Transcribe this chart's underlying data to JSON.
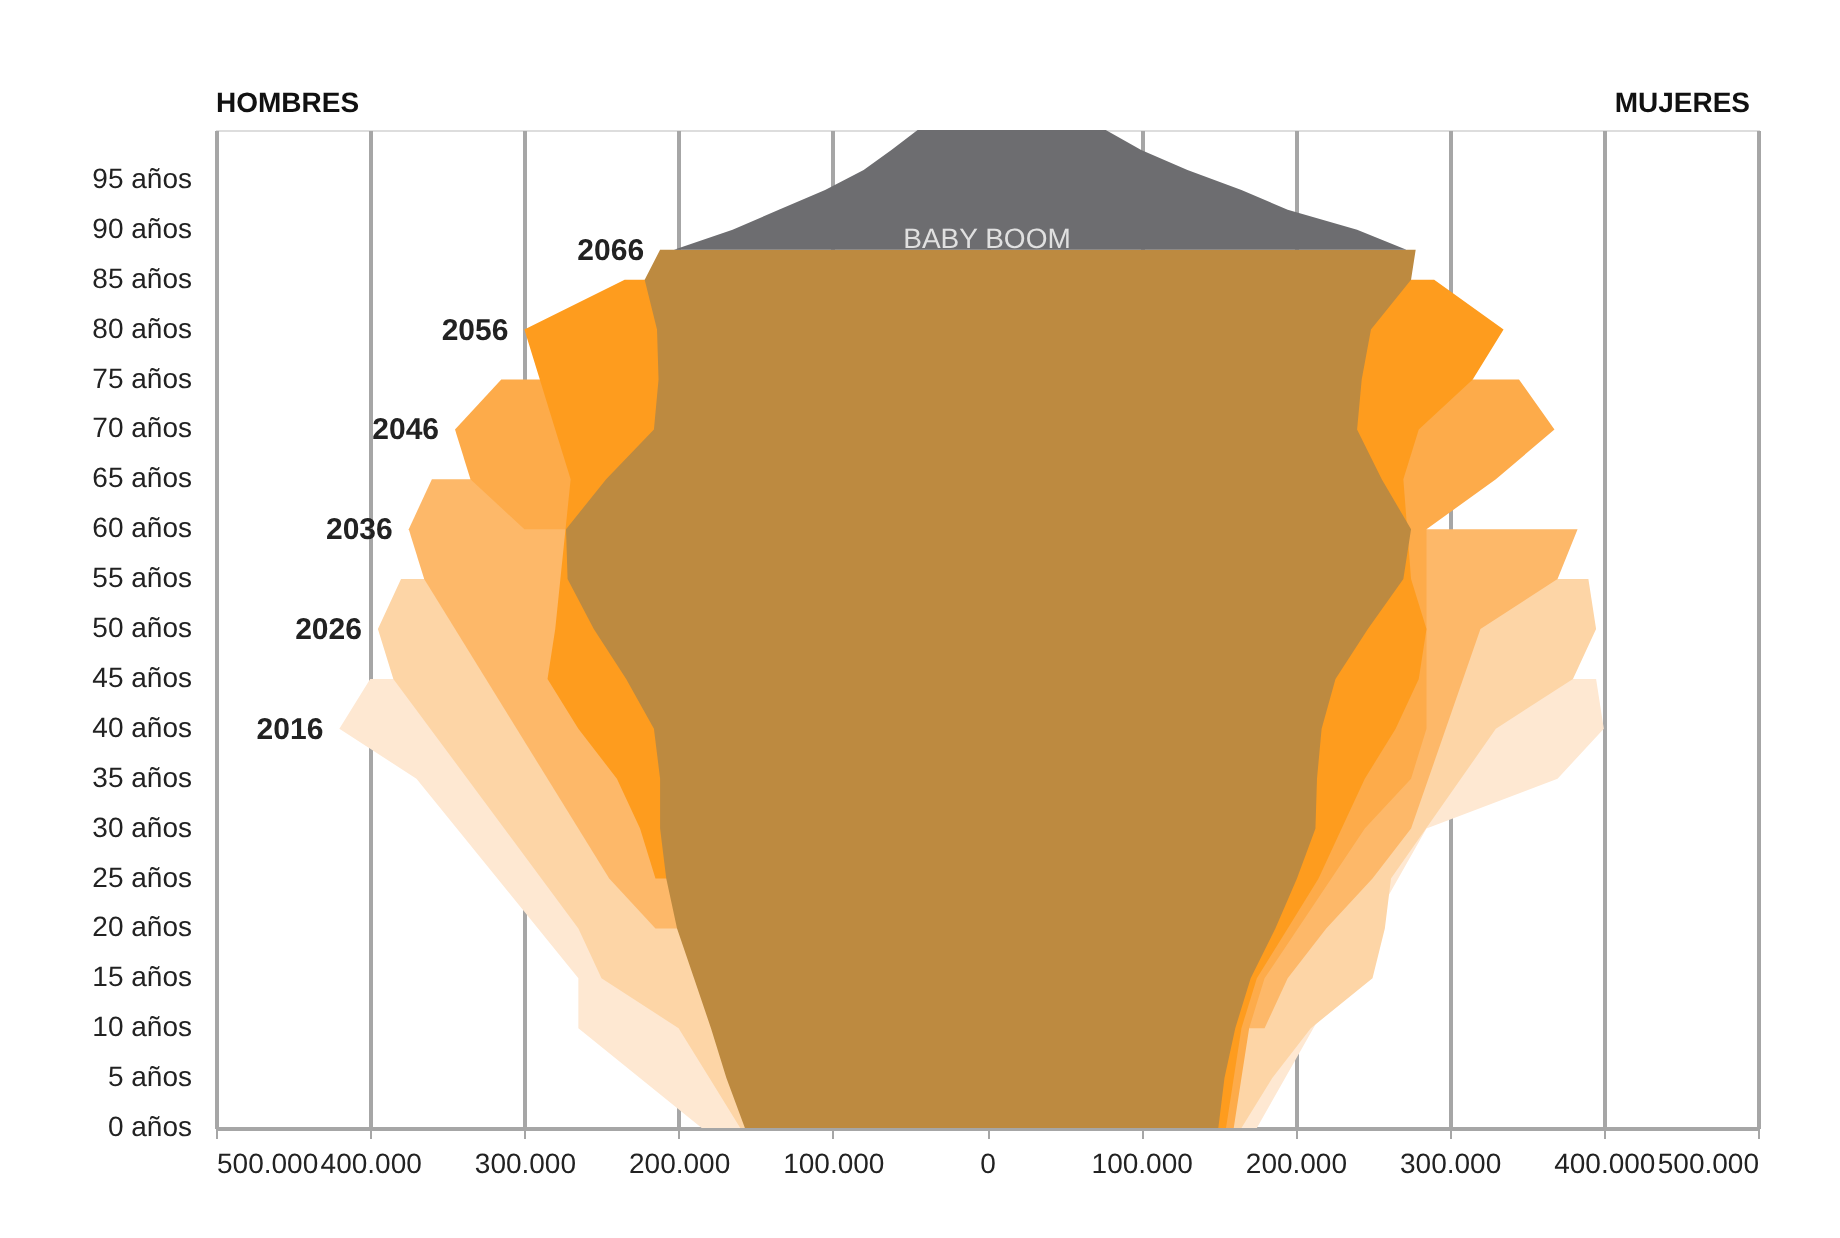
{
  "chart_data": {
    "type": "area",
    "orientation": "horizontal",
    "grid": "x",
    "xlim": [
      -500000,
      500000
    ],
    "xticks": [
      {
        "value": -500000,
        "label": "500.000"
      },
      {
        "value": -400000,
        "label": "400.000"
      },
      {
        "value": -300000,
        "label": "300.000"
      },
      {
        "value": -200000,
        "label": "200.000"
      },
      {
        "value": -100000,
        "label": "100.000"
      },
      0,
      {
        "value": 100000,
        "label": "100.000"
      },
      {
        "value": 200000,
        "label": "200.000"
      },
      {
        "value": 300000,
        "label": "300.000"
      },
      {
        "value": 400000,
        "label": "400.000"
      },
      {
        "value": 500000,
        "label": "500.000"
      }
    ],
    "ylim": [
      0,
      100
    ],
    "yticks": [
      {
        "value": 0,
        "label": "0 años"
      },
      {
        "value": 5,
        "label": "5 años"
      },
      {
        "value": 10,
        "label": "10 años"
      },
      {
        "value": 15,
        "label": "15 años"
      },
      {
        "value": 20,
        "label": "20 años"
      },
      {
        "value": 25,
        "label": "25 años"
      },
      {
        "value": 30,
        "label": "30 años"
      },
      {
        "value": 35,
        "label": "35 años"
      },
      {
        "value": 40,
        "label": "40 años"
      },
      {
        "value": 45,
        "label": "45 años"
      },
      {
        "value": 50,
        "label": "50 años"
      },
      {
        "value": 55,
        "label": "55 años"
      },
      {
        "value": 60,
        "label": "60 años"
      },
      {
        "value": 65,
        "label": "65 años"
      },
      {
        "value": 70,
        "label": "70 años"
      },
      {
        "value": 75,
        "label": "75 años"
      },
      {
        "value": 80,
        "label": "80 años"
      },
      {
        "value": 85,
        "label": "85 años"
      },
      {
        "value": 90,
        "label": "90 años"
      },
      {
        "value": 95,
        "label": "95 años"
      }
    ],
    "x": [
      0,
      5,
      10,
      15,
      20,
      25,
      30,
      35,
      40,
      45,
      50,
      55,
      60,
      65,
      70,
      75,
      80,
      85
    ],
    "series": [
      {
        "name": "2016",
        "color": "#fee8d2",
        "values": [
          -185000,
          null,
          -265000,
          -265000,
          null,
          null,
          null,
          -370000,
          -420000,
          -400000,
          null,
          null,
          null,
          null,
          null,
          null,
          null,
          null
        ]
      },
      {
        "color": "#fee8d2",
        "values": [
          175000,
          null,
          null,
          null,
          null,
          null,
          285000,
          370000,
          400000,
          395000,
          null,
          null,
          null,
          null,
          null,
          null,
          null,
          null
        ]
      },
      {
        "name": "2026",
        "color": "#fdd5a6",
        "values": [
          -160000,
          -180000,
          -200000,
          -250000,
          -265000,
          null,
          null,
          null,
          null,
          -385000,
          -395000,
          -380000,
          null,
          null,
          null,
          null,
          null,
          null
        ]
      },
      {
        "color": "#fdd5a6",
        "values": [
          165000,
          185000,
          210000,
          250000,
          258000,
          262000,
          null,
          null,
          330000,
          380000,
          395000,
          390000,
          null,
          null,
          null,
          null,
          null,
          null
        ]
      },
      {
        "name": "2036",
        "color": "#fdb869",
        "values": [
          null,
          null,
          null,
          null,
          -215000,
          -245000,
          null,
          null,
          null,
          null,
          null,
          -365000,
          -375000,
          -360000,
          null,
          null,
          null,
          null
        ]
      },
      {
        "color": "#fdb869",
        "values": [
          null,
          null,
          180000,
          195000,
          220000,
          250000,
          275000,
          null,
          null,
          null,
          320000,
          370000,
          383000,
          null,
          null,
          null,
          null,
          null
        ]
      },
      {
        "name": "2046",
        "color": "#fdab4a",
        "values": [
          null,
          null,
          null,
          null,
          null,
          null,
          null,
          null,
          null,
          null,
          null,
          null,
          -300000,
          -335000,
          -345000,
          -315000,
          null,
          null
        ]
      },
      {
        "color": "#fdab4a",
        "values": [
          160000,
          165000,
          170000,
          180000,
          null,
          null,
          245000,
          275000,
          285000,
          null,
          null,
          null,
          285000,
          330000,
          368000,
          345000,
          null,
          null
        ]
      },
      {
        "name": "2056",
        "color": "#fe9c1e",
        "values": [
          null,
          null,
          null,
          null,
          null,
          -215000,
          -225000,
          -240000,
          -265000,
          -285000,
          -280000,
          null,
          null,
          -270000,
          -280000,
          -290000,
          -300000,
          -235000
        ]
      },
      {
        "color": "#fe9c1e",
        "values": [
          155000,
          160000,
          165000,
          175000,
          195000,
          215000,
          230000,
          245000,
          265000,
          280000,
          285000,
          275000,
          null,
          270000,
          280000,
          315000,
          335000,
          290000
        ]
      },
      {
        "name": "2066",
        "color": "#bd8a40",
        "x": [
          0,
          5,
          10,
          15,
          20,
          25,
          30,
          35,
          40,
          45,
          50,
          55,
          60,
          65,
          70,
          75,
          80,
          85,
          88
        ],
        "values": [
          -157000,
          -169000,
          -179000,
          -190000,
          -201000,
          -208000,
          -212000,
          -212000,
          -216000,
          -234000,
          -255000,
          -272000,
          -273000,
          -247000,
          -216000,
          -213000,
          -214000,
          -222000,
          -212000
        ]
      },
      {
        "color": "#bd8a40",
        "x": [
          0,
          5,
          10,
          15,
          20,
          25,
          30,
          35,
          40,
          45,
          50,
          55,
          60,
          65,
          70,
          75,
          80,
          85,
          88
        ],
        "values": [
          150000,
          154000,
          161000,
          171000,
          187000,
          201000,
          213000,
          214000,
          217000,
          226000,
          247000,
          270000,
          275000,
          256000,
          240000,
          243000,
          249000,
          275000,
          278000
        ]
      },
      {
        "color": "#6d6d70",
        "x": [
          88,
          90,
          92,
          94,
          96,
          98,
          100
        ],
        "values": [
          -203000,
          -165000,
          -135000,
          -105000,
          -80000,
          -62000,
          -45000
        ]
      },
      {
        "color": "#6d6d70",
        "x": [
          88,
          90,
          92,
          94,
          96,
          98,
          100
        ],
        "values": [
          272000,
          240000,
          195000,
          165000,
          130000,
          100000,
          77000
        ]
      }
    ],
    "annotations": [
      "HOMBRES",
      "MUJERES",
      {
        "text": "BABY BOOM",
        "x": 0,
        "y": 89
      }
    ]
  }
}
